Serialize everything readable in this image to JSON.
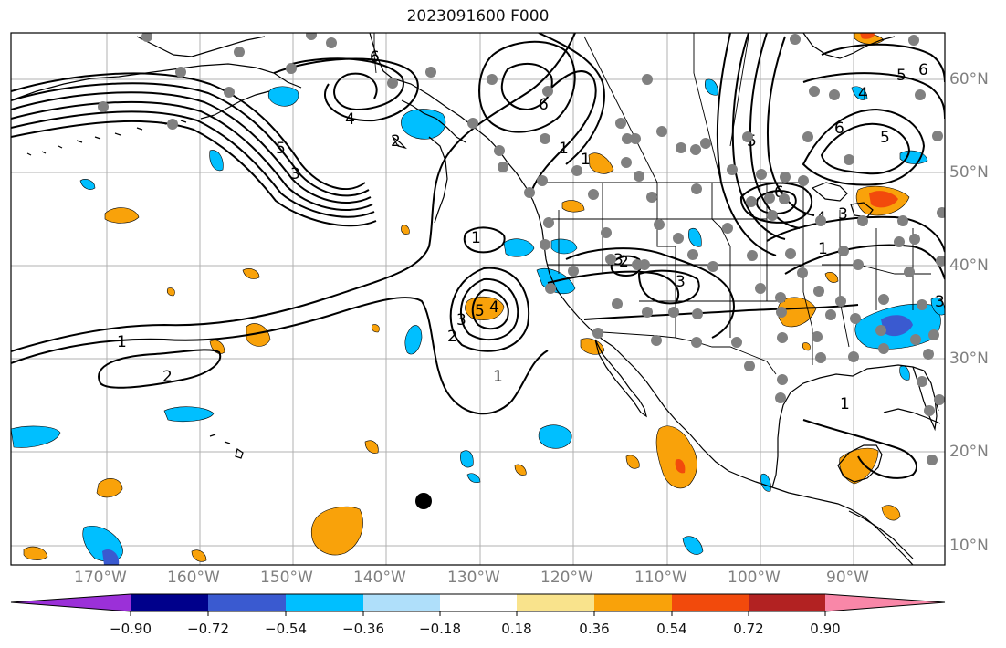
{
  "title": "2023091600 F000",
  "map": {
    "lat_labels": [
      "60°N",
      "50°N",
      "40°N",
      "30°N",
      "20°N",
      "10°N"
    ],
    "lon_labels": [
      "170°W",
      "160°W",
      "150°W",
      "140°W",
      "130°W",
      "120°W",
      "110°W",
      "100°W",
      "90°W"
    ],
    "extent": {
      "lon_min": -178,
      "lon_max": -78,
      "lat_min": 8,
      "lat_max": 65
    },
    "contour_labels": [
      "6",
      "5",
      "4",
      "3",
      "2",
      "1",
      "1",
      "1",
      "3",
      "5",
      "4",
      "2",
      "1",
      "2",
      "3",
      "6",
      "5",
      "6",
      "4",
      "5",
      "6",
      "4",
      "3",
      "1",
      "1",
      "3",
      "2",
      "1",
      "6",
      "5",
      "6",
      "3"
    ],
    "colors": {
      "contour": "#000000",
      "positive_fill": "#f9a20a",
      "positive_strong_fill": "#f24a0c",
      "negative_fill": "#00bfff",
      "negative_strong_fill": "#3a5ad0",
      "station_marker": "#808080",
      "center_marker": "#000000",
      "grid": "#b0b0b0"
    }
  },
  "colorbar": {
    "ticks": [
      "−0.90",
      "−0.72",
      "−0.54",
      "−0.36",
      "−0.18",
      "0.18",
      "0.36",
      "0.54",
      "0.72",
      "0.90"
    ],
    "segment_colors": [
      "#9b30d8",
      "#00008b",
      "#3a5ad0",
      "#00bfff",
      "#afdffa",
      "#ffffff",
      "#f9e38c",
      "#f9a20a",
      "#f24a0c",
      "#b22222",
      "#f987a8"
    ]
  }
}
